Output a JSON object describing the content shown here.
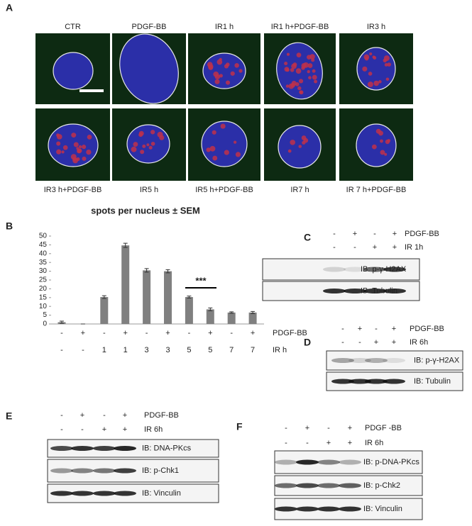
{
  "panel_a": {
    "label": "A",
    "images": [
      "CTR",
      "PDGF-BB",
      "IR1 h",
      "IR1 h+PDGF-BB",
      "IR3 h",
      "IR3 h+PDGF-BB",
      "IR5 h",
      "IR5 h+PDGF-BB",
      "IR7 h",
      "IR 7 h+PDGF-BB"
    ]
  },
  "chart_data": {
    "type": "bar",
    "label": "B",
    "title": "spots per nucleus ± SEM",
    "category_rows": [
      {
        "name": "PDGF-BB",
        "labels": [
          "-",
          "+",
          "-",
          "+",
          "-",
          "+",
          "-",
          "+",
          "-",
          "+"
        ]
      },
      {
        "name": "IR h",
        "labels": [
          "-",
          "-",
          "1",
          "1",
          "3",
          "3",
          "5",
          "5",
          "7",
          "7"
        ]
      }
    ],
    "values": [
      1,
      0,
      15.3,
      44.7,
      30.5,
      30,
      15.3,
      8.3,
      6.5,
      6.5
    ],
    "errors": [
      0.6,
      0,
      0.8,
      1.2,
      1,
      0.9,
      0.6,
      0.8,
      0.4,
      0.6
    ],
    "color": "#808080",
    "ylim": [
      0,
      50
    ],
    "yticks": [
      0,
      5,
      10,
      15,
      20,
      25,
      30,
      35,
      40,
      45,
      50
    ],
    "annotation": "***"
  },
  "blots": [
    {
      "label": "C",
      "rows": [
        {
          "name": "PDGF-BB",
          "signs": [
            "-",
            "+",
            "-",
            "+"
          ]
        },
        {
          "name": "IR 1h",
          "signs": [
            "-",
            "-",
            "+",
            "+"
          ]
        }
      ],
      "bands": [
        "IB: p-γ-H2AX",
        "IB: Tubulin"
      ]
    },
    {
      "label": "D",
      "rows": [
        {
          "name": "PDGF-BB",
          "signs": [
            "-",
            "+",
            "-",
            "+"
          ]
        },
        {
          "name": "IR 6h",
          "signs": [
            "-",
            "-",
            "+",
            "+"
          ]
        }
      ],
      "bands": [
        "IB: p-γ-H2AX",
        "IB: Tubulin"
      ]
    },
    {
      "label": "E",
      "rows": [
        {
          "name": "PDGF-BB",
          "signs": [
            "-",
            "+",
            "-",
            "+"
          ]
        },
        {
          "name": "IR 6h",
          "signs": [
            "-",
            "-",
            "+",
            "+"
          ]
        }
      ],
      "bands": [
        "IB: DNA-PKcs",
        "IB: p-Chk1",
        "IB: Vinculin"
      ]
    },
    {
      "label": "F",
      "rows": [
        {
          "name": "PDGF -BB",
          "signs": [
            "-",
            "+",
            "-",
            "+"
          ]
        },
        {
          "name": "IR 6h",
          "signs": [
            "-",
            "-",
            "+",
            "+"
          ]
        }
      ],
      "bands": [
        "IB: p-DNA-PKcs",
        "IB: p-Chk2",
        "IB: Vinculin"
      ]
    }
  ]
}
